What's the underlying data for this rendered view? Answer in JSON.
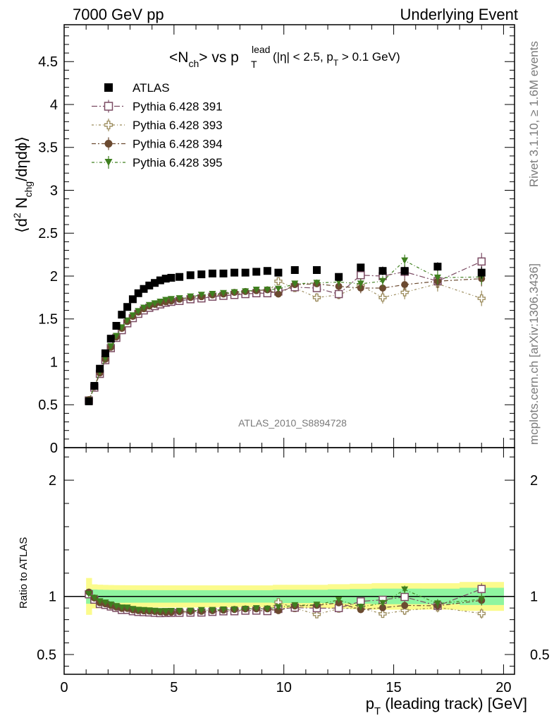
{
  "header": {
    "left": "7000 GeV pp",
    "right": "Underlying Event"
  },
  "side": {
    "rivet": "Rivet 3.1.10, ≥ 1.6M events",
    "mcplots": "mcplots.cern.ch [arXiv:1306.3436]"
  },
  "analysis_tag": "ATLAS_2010_S8894728",
  "title": {
    "main": "<N",
    "sub_ch": "ch",
    "vs": "> vs p",
    "sup_lead": "lead",
    "sub_T": "T",
    "cuts_a": "(|η| < 2.5, p",
    "cuts_sub": "T",
    "cuts_b": " > 0.1 GeV)"
  },
  "ylabel_top": {
    "a": "⟨d",
    "sup": "2",
    "b": " N",
    "sub": "chg",
    "c": "/dηdϕ⟩"
  },
  "ylabel_bottom": "Ratio to ATLAS",
  "xlabel": {
    "a": "p",
    "sub": "T",
    "b": " (leading track) [GeV]"
  },
  "colors": {
    "atlas": "#000000",
    "p391": "#7b4b63",
    "p393": "#9a8a5a",
    "p394": "#6b4a30",
    "p395": "#3f7f1f",
    "band_inner": "#8ff5a0",
    "band_outer": "#fbfb8c"
  },
  "chart_data": {
    "type": "scatter",
    "x_range": [
      0,
      20.5
    ],
    "x_ticks": [
      0,
      5,
      10,
      15,
      20
    ],
    "top_panel": {
      "ylim": [
        0,
        4.93
      ],
      "y_ticks": [
        0,
        0.5,
        1,
        1.5,
        2,
        2.5,
        3,
        3.5,
        4,
        4.5
      ],
      "y_tick_labels": [
        "0",
        "0.5",
        "1",
        "1.5",
        "2",
        "2.5",
        "3",
        "3.5",
        "4",
        "4.5"
      ]
    },
    "ratio_panel": {
      "ylim": [
        0.33,
        2.28
      ],
      "y_ticks": [
        0.5,
        1,
        2
      ],
      "y_tick_labels": [
        "0.5",
        "1",
        "2"
      ],
      "reference_line": 1,
      "band_inner_halfwidth": 0.05,
      "band_outer_halfwidth": 0.09
    },
    "x": [
      1.125,
      1.375,
      1.625,
      1.875,
      2.125,
      2.375,
      2.625,
      2.875,
      3.125,
      3.375,
      3.625,
      3.875,
      4.125,
      4.375,
      4.625,
      4.875,
      5.25,
      5.75,
      6.25,
      6.75,
      7.25,
      7.75,
      8.25,
      8.75,
      9.25,
      9.75,
      10.5,
      11.5,
      12.5,
      13.5,
      14.5,
      15.5,
      17.0,
      19.0
    ],
    "series": [
      {
        "name": "ATLAS",
        "key": "atlas",
        "marker": "filled-square",
        "values": [
          0.54,
          0.72,
          0.92,
          1.1,
          1.27,
          1.42,
          1.55,
          1.64,
          1.73,
          1.8,
          1.85,
          1.89,
          1.92,
          1.95,
          1.97,
          1.98,
          1.99,
          2.01,
          2.02,
          2.03,
          2.03,
          2.04,
          2.04,
          2.05,
          2.06,
          2.04,
          2.07,
          2.07,
          1.99,
          2.1,
          2.06,
          2.06,
          2.11,
          2.04
        ],
        "errors": [
          0.01,
          0.01,
          0.01,
          0.01,
          0.01,
          0.01,
          0.01,
          0.01,
          0.01,
          0.01,
          0.01,
          0.01,
          0.01,
          0.01,
          0.01,
          0.01,
          0.01,
          0.01,
          0.01,
          0.01,
          0.01,
          0.01,
          0.01,
          0.01,
          0.01,
          0.02,
          0.02,
          0.02,
          0.03,
          0.04,
          0.05,
          0.05,
          0.05,
          0.07
        ]
      },
      {
        "name": "Pythia 6.428 391",
        "key": "p391",
        "marker": "open-square",
        "values": [
          0.55,
          0.7,
          0.86,
          1.02,
          1.16,
          1.28,
          1.37,
          1.45,
          1.51,
          1.56,
          1.6,
          1.63,
          1.65,
          1.67,
          1.69,
          1.7,
          1.71,
          1.73,
          1.74,
          1.76,
          1.77,
          1.78,
          1.79,
          1.8,
          1.8,
          1.82,
          1.87,
          1.86,
          1.79,
          2.01,
          2.0,
          2.05,
          1.94,
          2.17
        ],
        "errors": [
          0.01,
          0.01,
          0.01,
          0.01,
          0.01,
          0.01,
          0.01,
          0.01,
          0.01,
          0.01,
          0.01,
          0.01,
          0.01,
          0.01,
          0.01,
          0.01,
          0.01,
          0.01,
          0.01,
          0.01,
          0.01,
          0.01,
          0.01,
          0.01,
          0.02,
          0.02,
          0.03,
          0.04,
          0.05,
          0.06,
          0.07,
          0.08,
          0.08,
          0.1
        ]
      },
      {
        "name": "Pythia 6.428 393",
        "key": "p393",
        "marker": "open-cross",
        "values": [
          0.55,
          0.7,
          0.86,
          1.02,
          1.16,
          1.28,
          1.37,
          1.45,
          1.52,
          1.57,
          1.61,
          1.64,
          1.66,
          1.67,
          1.69,
          1.7,
          1.71,
          1.73,
          1.74,
          1.77,
          1.78,
          1.79,
          1.8,
          1.8,
          1.81,
          1.94,
          1.86,
          1.75,
          1.78,
          1.89,
          1.75,
          1.81,
          1.91,
          1.74
        ],
        "errors": [
          0.01,
          0.01,
          0.01,
          0.01,
          0.01,
          0.01,
          0.01,
          0.01,
          0.01,
          0.01,
          0.01,
          0.01,
          0.01,
          0.01,
          0.01,
          0.01,
          0.01,
          0.01,
          0.01,
          0.01,
          0.01,
          0.01,
          0.01,
          0.02,
          0.02,
          0.03,
          0.04,
          0.05,
          0.05,
          0.06,
          0.07,
          0.08,
          0.09,
          0.09
        ]
      },
      {
        "name": "Pythia 6.428 394",
        "key": "p394",
        "marker": "filled-circle",
        "values": [
          0.56,
          0.71,
          0.87,
          1.03,
          1.17,
          1.29,
          1.39,
          1.47,
          1.53,
          1.58,
          1.62,
          1.65,
          1.67,
          1.69,
          1.7,
          1.71,
          1.73,
          1.75,
          1.76,
          1.78,
          1.79,
          1.81,
          1.82,
          1.83,
          1.84,
          1.79,
          1.9,
          1.91,
          1.88,
          1.86,
          1.86,
          1.9,
          1.94,
          1.97
        ],
        "errors": [
          0.01,
          0.01,
          0.01,
          0.01,
          0.01,
          0.01,
          0.01,
          0.01,
          0.01,
          0.01,
          0.01,
          0.01,
          0.01,
          0.01,
          0.01,
          0.01,
          0.01,
          0.01,
          0.01,
          0.01,
          0.01,
          0.01,
          0.01,
          0.02,
          0.02,
          0.02,
          0.03,
          0.04,
          0.05,
          0.06,
          0.06,
          0.07,
          0.08,
          0.09
        ]
      },
      {
        "name": "Pythia 6.428 395",
        "key": "p395",
        "marker": "filled-triangle-down",
        "values": [
          0.55,
          0.71,
          0.88,
          1.04,
          1.18,
          1.3,
          1.4,
          1.48,
          1.54,
          1.59,
          1.63,
          1.66,
          1.68,
          1.7,
          1.72,
          1.73,
          1.74,
          1.76,
          1.78,
          1.79,
          1.8,
          1.81,
          1.82,
          1.84,
          1.84,
          1.85,
          1.91,
          1.92,
          1.93,
          1.91,
          1.94,
          2.18,
          1.98,
          1.99
        ],
        "errors": [
          0.01,
          0.01,
          0.01,
          0.01,
          0.01,
          0.01,
          0.01,
          0.01,
          0.01,
          0.01,
          0.01,
          0.01,
          0.01,
          0.01,
          0.01,
          0.01,
          0.01,
          0.01,
          0.01,
          0.01,
          0.01,
          0.01,
          0.01,
          0.02,
          0.02,
          0.02,
          0.03,
          0.04,
          0.05,
          0.06,
          0.06,
          0.07,
          0.08,
          0.09
        ]
      }
    ],
    "legend_placement": "top-left"
  }
}
